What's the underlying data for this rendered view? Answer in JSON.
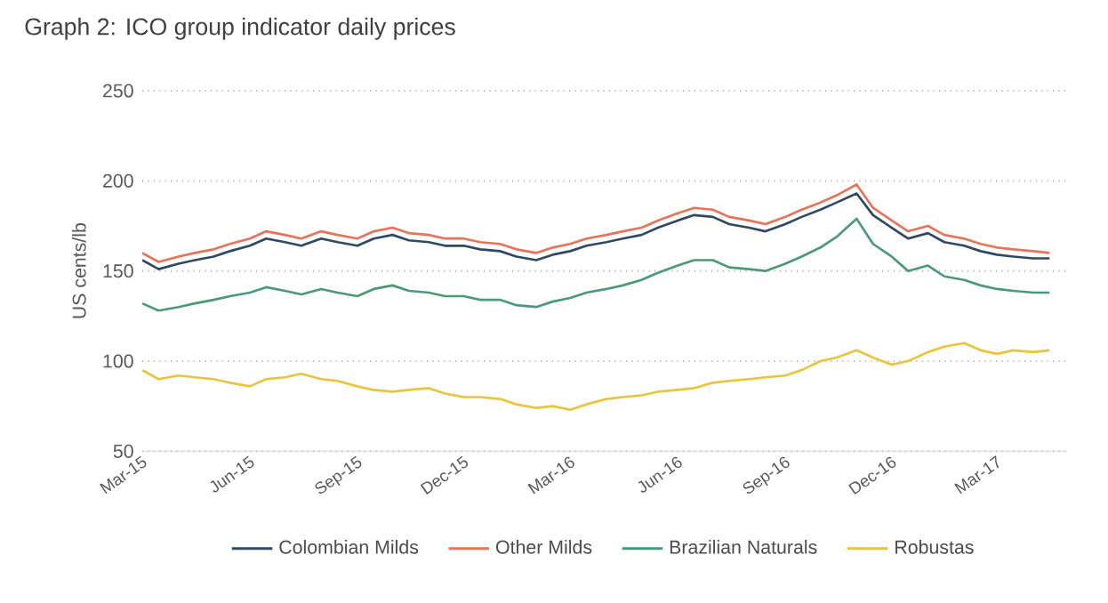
{
  "chart_data": {
    "type": "line",
    "title": "Graph 2: ICO group indicator daily prices",
    "ylabel": "US cents/lb",
    "x": [
      "2015-03-01",
      "2015-03-15",
      "2015-04-01",
      "2015-04-15",
      "2015-05-01",
      "2015-05-15",
      "2015-06-01",
      "2015-06-15",
      "2015-07-01",
      "2015-07-15",
      "2015-08-01",
      "2015-08-15",
      "2015-09-01",
      "2015-09-15",
      "2015-10-01",
      "2015-10-15",
      "2015-11-01",
      "2015-11-15",
      "2015-12-01",
      "2015-12-15",
      "2016-01-01",
      "2016-01-15",
      "2016-02-01",
      "2016-02-15",
      "2016-03-01",
      "2016-03-15",
      "2016-04-01",
      "2016-04-15",
      "2016-05-01",
      "2016-05-15",
      "2016-06-01",
      "2016-06-15",
      "2016-07-01",
      "2016-07-15",
      "2016-08-01",
      "2016-08-15",
      "2016-09-01",
      "2016-09-15",
      "2016-10-01",
      "2016-10-15",
      "2016-11-01",
      "2016-11-15",
      "2016-12-01",
      "2016-12-15",
      "2017-01-01",
      "2017-01-15",
      "2017-02-01",
      "2017-02-15",
      "2017-03-01",
      "2017-03-15",
      "2017-04-01",
      "2017-04-15"
    ],
    "series": [
      {
        "name": "Colombian Milds",
        "color": "#2e4a62",
        "values": [
          156,
          151,
          154,
          156,
          158,
          161,
          164,
          168,
          166,
          164,
          168,
          166,
          164,
          168,
          170,
          167,
          166,
          164,
          164,
          162,
          161,
          158,
          156,
          159,
          161,
          164,
          166,
          168,
          170,
          174,
          178,
          181,
          180,
          176,
          174,
          172,
          176,
          180,
          184,
          188,
          193,
          181,
          174,
          168,
          171,
          166,
          164,
          161,
          159,
          158,
          157,
          157
        ]
      },
      {
        "name": "Other Milds",
        "color": "#e8735a",
        "values": [
          160,
          155,
          158,
          160,
          162,
          165,
          168,
          172,
          170,
          168,
          172,
          170,
          168,
          172,
          174,
          171,
          170,
          168,
          168,
          166,
          165,
          162,
          160,
          163,
          165,
          168,
          170,
          172,
          174,
          178,
          182,
          185,
          184,
          180,
          178,
          176,
          180,
          184,
          188,
          192,
          198,
          185,
          178,
          172,
          175,
          170,
          168,
          165,
          163,
          162,
          161,
          160
        ]
      },
      {
        "name": "Brazilian Naturals",
        "color": "#4a9a7a",
        "values": [
          132,
          128,
          130,
          132,
          134,
          136,
          138,
          141,
          139,
          137,
          140,
          138,
          136,
          140,
          142,
          139,
          138,
          136,
          136,
          134,
          134,
          131,
          130,
          133,
          135,
          138,
          140,
          142,
          145,
          149,
          153,
          156,
          156,
          152,
          151,
          150,
          154,
          158,
          163,
          169,
          179,
          165,
          158,
          150,
          153,
          147,
          145,
          142,
          140,
          139,
          138,
          138
        ]
      },
      {
        "name": "Robustas",
        "color": "#e8c53a",
        "values": [
          95,
          90,
          92,
          91,
          90,
          88,
          86,
          90,
          91,
          93,
          90,
          89,
          86,
          84,
          83,
          84,
          85,
          82,
          80,
          80,
          79,
          76,
          74,
          75,
          73,
          76,
          79,
          80,
          81,
          83,
          84,
          85,
          88,
          89,
          90,
          91,
          92,
          95,
          100,
          102,
          106,
          102,
          98,
          100,
          105,
          108,
          110,
          106,
          104,
          106,
          105,
          106
        ]
      }
    ],
    "xlim": [
      "2015-03-01",
      "2017-04-30"
    ],
    "xticks": [
      {
        "value": "2015-03-01",
        "label": "Mar-15"
      },
      {
        "value": "2015-06-01",
        "label": "Jun-15"
      },
      {
        "value": "2015-09-01",
        "label": "Sep-15"
      },
      {
        "value": "2015-12-01",
        "label": "Dec-15"
      },
      {
        "value": "2016-03-01",
        "label": "Mar-16"
      },
      {
        "value": "2016-06-01",
        "label": "Jun-16"
      },
      {
        "value": "2016-09-01",
        "label": "Sep-16"
      },
      {
        "value": "2016-12-01",
        "label": "Dec-16"
      },
      {
        "value": "2017-03-01",
        "label": "Mar-17"
      }
    ],
    "ylim": [
      50,
      250
    ],
    "yticks": [
      50,
      100,
      150,
      200,
      250
    ],
    "grid": "y",
    "legend": "bottom"
  }
}
